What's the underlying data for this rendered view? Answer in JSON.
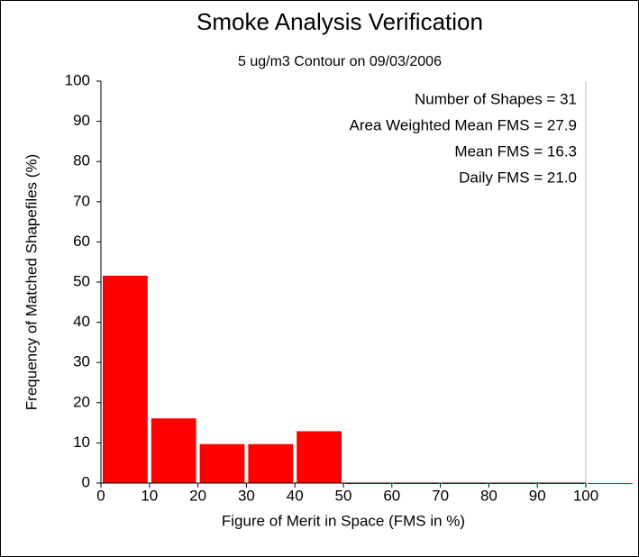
{
  "chart_data": {
    "type": "histogram",
    "title": "Smoke Analysis Verification",
    "subtitle": "5 ug/m3 Contour on 09/03/2006",
    "xlabel": "Figure of Merit in Space (FMS in %)",
    "ylabel": "Frequency of Matched Shapefiles (%)",
    "annotations": [
      "Number of Shapes = 31",
      "Area Weighted Mean FMS = 27.9",
      "Mean FMS = 16.3",
      "Daily FMS = 21.0"
    ],
    "bins": [
      0,
      10,
      20,
      30,
      40,
      50,
      60,
      70,
      80,
      90,
      100,
      110
    ],
    "values": [
      51.6,
      16.1,
      9.7,
      9.7,
      12.9,
      0,
      0,
      0,
      0,
      0,
      0
    ],
    "color": "#ff0000",
    "xlim": [
      0,
      100
    ],
    "ylim": [
      0,
      100
    ],
    "xticks": [
      0,
      10,
      20,
      30,
      40,
      50,
      60,
      70,
      80,
      90,
      100
    ],
    "yticks": [
      0,
      10,
      20,
      30,
      40,
      50,
      60,
      70,
      80,
      90,
      100
    ]
  }
}
